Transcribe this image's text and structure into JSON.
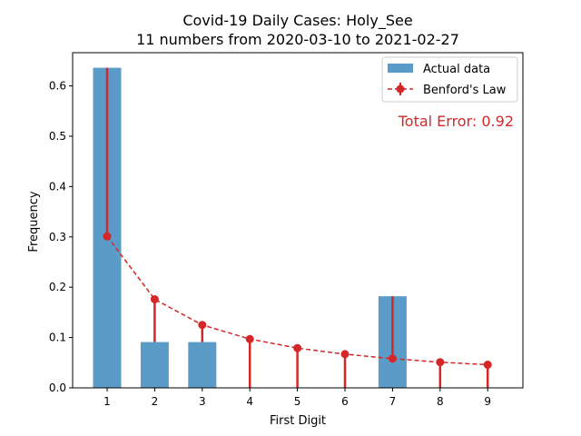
{
  "chart_data": {
    "type": "bar",
    "title_line1": "Covid-19 Daily Cases: Holy_See",
    "title_line2": "11 numbers from 2020-03-10 to 2021-02-27",
    "xlabel": "First Digit",
    "ylabel": "Frequency",
    "categories": [
      "1",
      "2",
      "3",
      "4",
      "5",
      "6",
      "7",
      "8",
      "9"
    ],
    "ylim": [
      0,
      0.666
    ],
    "yticks": [
      "0.0",
      "0.1",
      "0.2",
      "0.3",
      "0.4",
      "0.5",
      "0.6"
    ],
    "series": [
      {
        "name": "Actual data",
        "kind": "bar",
        "color": "#5b9bc8",
        "values": [
          0.636,
          0.091,
          0.091,
          0.0,
          0.0,
          0.0,
          0.182,
          0.0,
          0.0
        ]
      },
      {
        "name": "Benford's Law",
        "kind": "line-with-error",
        "color": "#d62728",
        "values": [
          0.301,
          0.176,
          0.125,
          0.097,
          0.079,
          0.067,
          0.058,
          0.051,
          0.046
        ]
      }
    ],
    "annotation": "Total Error: 0.92",
    "annotation_color": "#d62728",
    "legend_position": "top-right",
    "grid": false
  }
}
